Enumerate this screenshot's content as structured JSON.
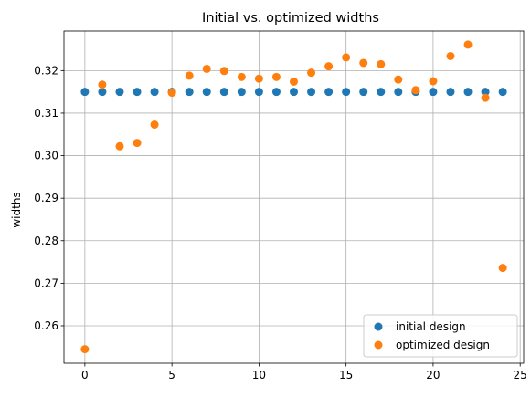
{
  "chart_data": {
    "type": "scatter",
    "title": "Initial vs. optimized widths",
    "xlabel": "",
    "ylabel": "widths",
    "xlim": [
      -1.2,
      25.2
    ],
    "ylim": [
      0.2512,
      0.3293
    ],
    "xticks": [
      0,
      5,
      10,
      15,
      20,
      25
    ],
    "yticks": [
      0.26,
      0.27,
      0.28,
      0.29,
      0.3,
      0.31,
      0.32
    ],
    "ytick_labels": [
      "0.26",
      "0.27",
      "0.28",
      "0.29",
      "0.30",
      "0.31",
      "0.32"
    ],
    "grid": true,
    "legend_position": "lower-right",
    "x": [
      0,
      1,
      2,
      3,
      4,
      5,
      6,
      7,
      8,
      9,
      10,
      11,
      12,
      13,
      14,
      15,
      16,
      17,
      18,
      19,
      20,
      21,
      22,
      23,
      24
    ],
    "series": [
      {
        "name": "initial design",
        "color": "#1f77b4",
        "values": [
          0.315,
          0.315,
          0.315,
          0.315,
          0.315,
          0.315,
          0.315,
          0.315,
          0.315,
          0.315,
          0.315,
          0.315,
          0.315,
          0.315,
          0.315,
          0.315,
          0.315,
          0.315,
          0.315,
          0.315,
          0.315,
          0.315,
          0.315,
          0.315,
          0.315
        ]
      },
      {
        "name": "optimized design",
        "color": "#ff7f0e",
        "values": [
          0.2545,
          0.3167,
          0.3022,
          0.303,
          0.3073,
          0.3148,
          0.3188,
          0.3204,
          0.3199,
          0.3185,
          0.3181,
          0.3185,
          0.3174,
          0.3195,
          0.321,
          0.3231,
          0.3218,
          0.3215,
          0.3179,
          0.3154,
          0.3175,
          0.3234,
          0.3261,
          0.3136,
          0.2736
        ]
      }
    ]
  }
}
